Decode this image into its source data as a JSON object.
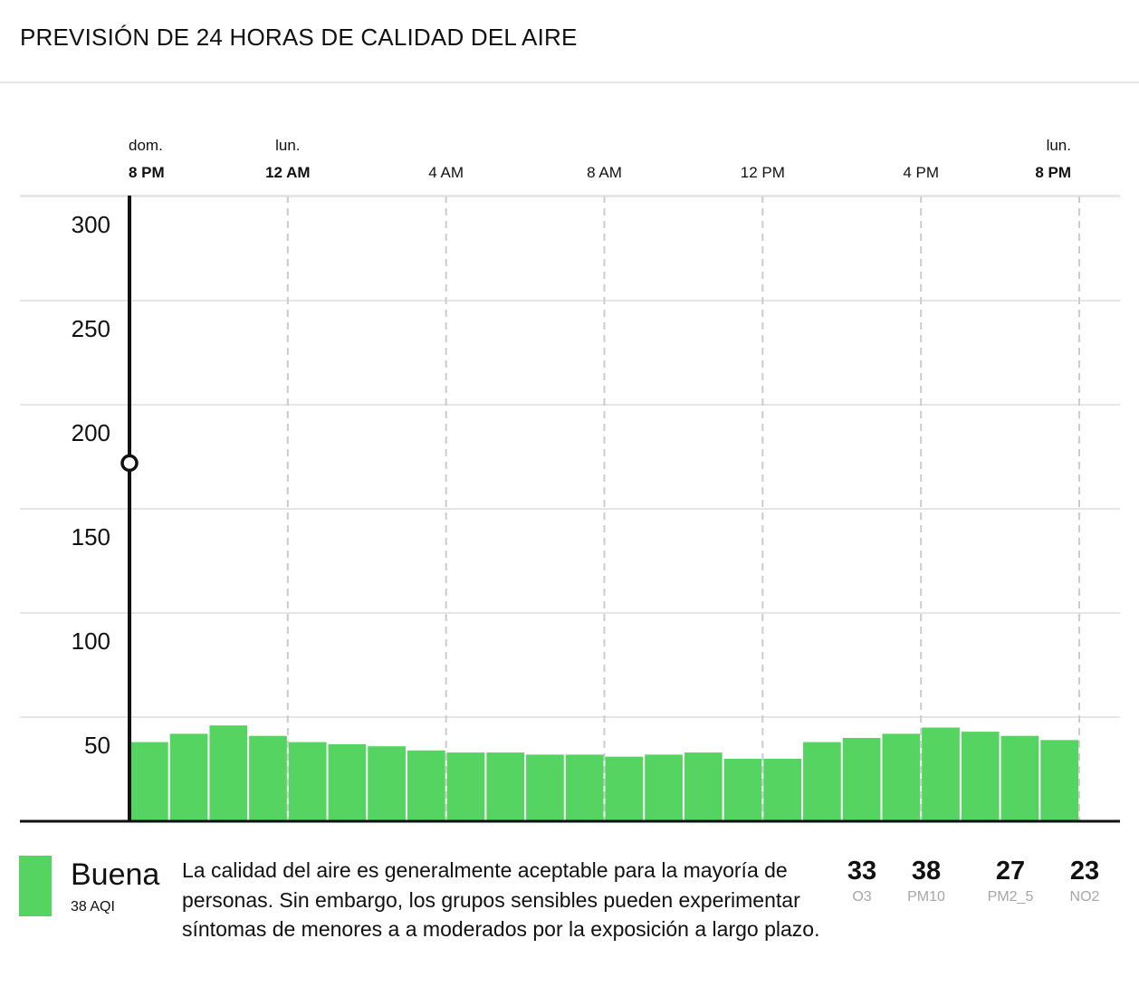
{
  "header": {
    "title": "PREVISIÓN DE 24 HORAS DE CALIDAD DEL AIRE"
  },
  "colors": {
    "good": "#55d462",
    "grid": "#e6e6e6",
    "dashed": "#cccccc",
    "axis": "#111111",
    "muted": "#a7a7a7"
  },
  "chart_data": {
    "type": "bar",
    "y_ticks": [
      "300",
      "250",
      "200",
      "150",
      "100",
      "50"
    ],
    "ylim": [
      0,
      300
    ],
    "x_ticks": [
      {
        "day": "dom.",
        "time": "8 PM",
        "bold": true
      },
      {
        "day": "lun.",
        "time": "12 AM",
        "bold": true
      },
      {
        "day": "",
        "time": "4 AM",
        "bold": false
      },
      {
        "day": "",
        "time": "8 AM",
        "bold": false
      },
      {
        "day": "",
        "time": "12 PM",
        "bold": false
      },
      {
        "day": "",
        "time": "4 PM",
        "bold": false
      },
      {
        "day": "lun.",
        "time": "8 PM",
        "bold": true
      }
    ],
    "categories": [
      "8 PM",
      "9 PM",
      "10 PM",
      "11 PM",
      "12 AM",
      "1 AM",
      "2 AM",
      "3 AM",
      "4 AM",
      "5 AM",
      "6 AM",
      "7 AM",
      "8 AM",
      "9 AM",
      "10 AM",
      "11 AM",
      "12 PM",
      "1 PM",
      "2 PM",
      "3 PM",
      "4 PM",
      "5 PM",
      "6 PM",
      "7 PM"
    ],
    "values": [
      38,
      42,
      46,
      41,
      38,
      37,
      36,
      34,
      33,
      33,
      32,
      32,
      31,
      32,
      33,
      30,
      30,
      38,
      40,
      42,
      45,
      43,
      41,
      39
    ],
    "marker_value": 172
  },
  "summary": {
    "category": "Buena",
    "aqi": "38 AQI",
    "description": "La calidad del aire es generalmente aceptable para la mayoría de personas. Sin embargo, los grupos sensibles pueden experimentar síntomas de menores a a moderados por la exposición a largo plazo."
  },
  "pollutants": [
    {
      "value": "33",
      "name": "O3"
    },
    {
      "value": "38",
      "name": "PM10"
    },
    {
      "value": "27",
      "name": "PM2_5"
    },
    {
      "value": "23",
      "name": "NO2"
    }
  ]
}
